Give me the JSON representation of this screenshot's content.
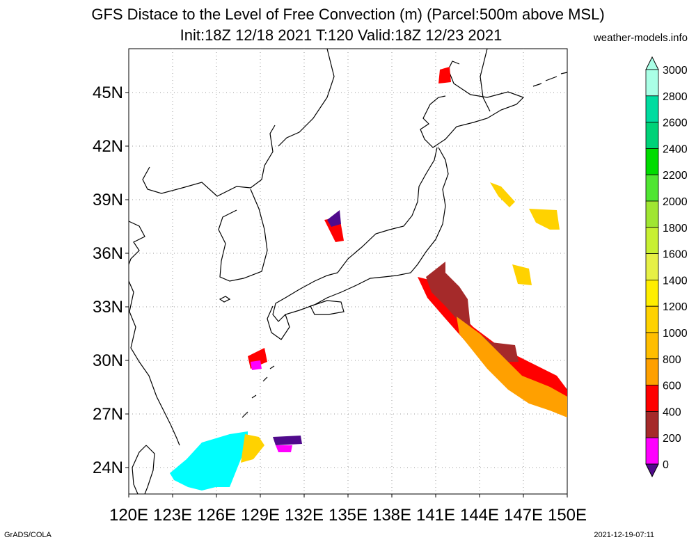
{
  "header": {
    "title_line1": "GFS Distace to the Level of Free Convection (m) (Parcel:500m above MSL)",
    "title_line2": "Init:18Z 12/18 2021 T:120 Valid:18Z 12/23 2021",
    "site": "weather-models.info"
  },
  "footer": {
    "left": "GrADS/COLA",
    "right": "2021-12-19-07:11"
  },
  "map": {
    "lon_labels": [
      "120E",
      "123E",
      "126E",
      "129E",
      "132E",
      "135E",
      "138E",
      "141E",
      "144E",
      "147E",
      "150E"
    ],
    "lat_labels": [
      "45N",
      "42N",
      "39N",
      "36N",
      "33N",
      "30N",
      "27N",
      "24N"
    ]
  },
  "colorbar": {
    "labels": [
      "3000",
      "2800",
      "2600",
      "2400",
      "2200",
      "2000",
      "1800",
      "1600",
      "1400",
      "1200",
      "1000",
      "800",
      "600",
      "400",
      "200",
      "0"
    ],
    "colors": {
      "c3000": "#aaffe6",
      "c2800": "#00dca0",
      "c2600": "#00d278",
      "c2400": "#00dc00",
      "c2200": "#50e632",
      "c2000": "#a0e632",
      "c1800": "#c8f032",
      "c1600": "#e6f046",
      "c1400": "#ffee00",
      "c1200": "#ffd200",
      "c1000": "#ffbe00",
      "c800": "#ffa000",
      "c600": "#ff0000",
      "c400": "#a52a2a",
      "c200": "#ff00ff",
      "c0": "#500a8c"
    }
  }
}
